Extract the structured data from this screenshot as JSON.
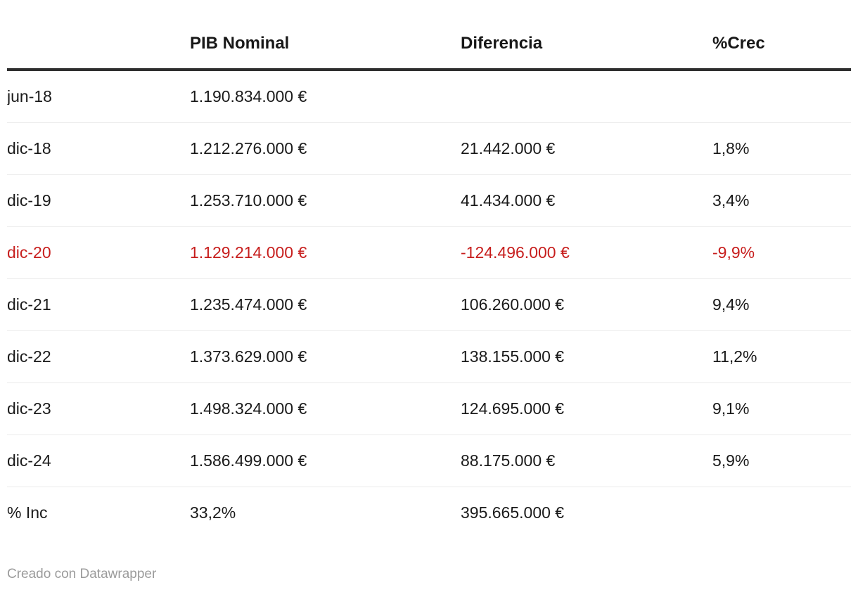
{
  "chart_data": {
    "type": "table",
    "title": "",
    "columns": [
      "",
      "PIB Nominal",
      "Diferencia",
      "%Crec"
    ],
    "rows": [
      {
        "label": "jun-18",
        "pib_nominal": "1.190.834.000 €",
        "diferencia": "",
        "crec": "",
        "negative": false
      },
      {
        "label": "dic-18",
        "pib_nominal": "1.212.276.000 €",
        "diferencia": "21.442.000 €",
        "crec": "1,8%",
        "negative": false
      },
      {
        "label": "dic-19",
        "pib_nominal": "1.253.710.000 €",
        "diferencia": "41.434.000 €",
        "crec": "3,4%",
        "negative": false
      },
      {
        "label": "dic-20",
        "pib_nominal": "1.129.214.000 €",
        "diferencia": "-124.496.000 €",
        "crec": "-9,9%",
        "negative": true
      },
      {
        "label": "dic-21",
        "pib_nominal": "1.235.474.000 €",
        "diferencia": "106.260.000 €",
        "crec": "9,4%",
        "negative": false
      },
      {
        "label": "dic-22",
        "pib_nominal": "1.373.629.000 €",
        "diferencia": "138.155.000 €",
        "crec": "11,2%",
        "negative": false
      },
      {
        "label": "dic-23",
        "pib_nominal": "1.498.324.000 €",
        "diferencia": "124.695.000 €",
        "crec": "9,1%",
        "negative": false
      },
      {
        "label": "dic-24",
        "pib_nominal": "1.586.499.000 €",
        "diferencia": "88.175.000 €",
        "crec": "5,9%",
        "negative": false
      },
      {
        "label": "% Inc",
        "pib_nominal": "33,2%",
        "diferencia": "395.665.000 €",
        "crec": "",
        "negative": false
      }
    ],
    "layout": {
      "grid": "row-separators-only",
      "legend": "none",
      "highlight_negative_row": "dic-20"
    }
  },
  "footer": {
    "credit": "Creado con Datawrapper"
  },
  "colors": {
    "negative_red": "#c71e1d",
    "text": "#1a1a1a",
    "header_rule": "#2e2e2e",
    "row_separator": "#ebebeb",
    "credit_gray": "#9b9b9b",
    "background": "#ffffff"
  }
}
